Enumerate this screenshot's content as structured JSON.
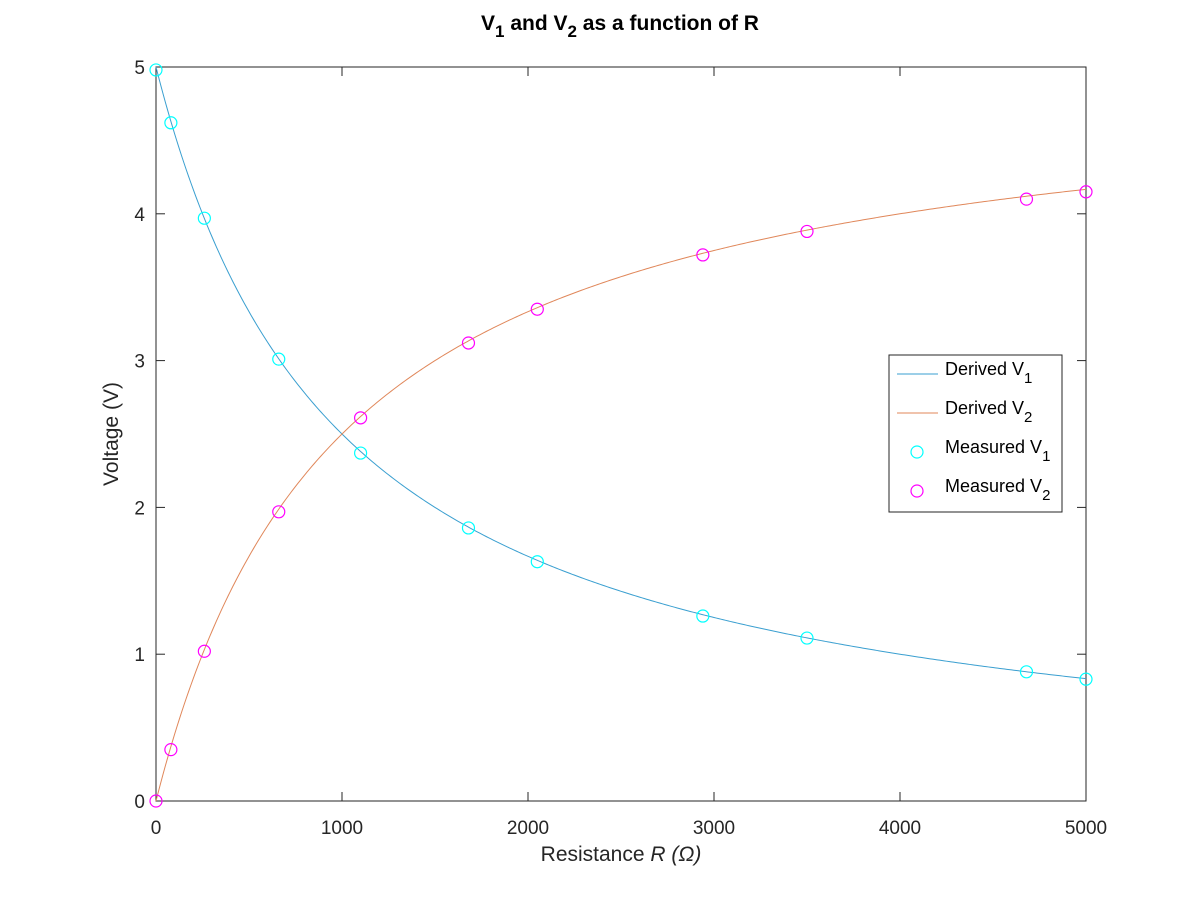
{
  "chart_data": {
    "type": "line",
    "title": {
      "prefix": "V",
      "sub1": "1",
      "mid": " and V",
      "sub2": "2",
      "suffix": " as a function of R"
    },
    "xlabel": {
      "main": "Resistance ",
      "italic": "R (Ω)"
    },
    "ylabel": "Voltage (V)",
    "xlim": [
      0,
      5000
    ],
    "ylim": [
      0,
      5
    ],
    "xticks": [
      0,
      1000,
      2000,
      3000,
      4000,
      5000
    ],
    "yticks": [
      0,
      1,
      2,
      3,
      4,
      5
    ],
    "grid": false,
    "legend_position": "right",
    "derived_model": {
      "source_voltage": 5,
      "series_resistance": 1000
    },
    "series": [
      {
        "key": "derived_v1",
        "name": "Derived V",
        "sub": "1",
        "kind": "line",
        "color": "#3a9fd0",
        "formula": "V1 = 5*1000/(1000+R)"
      },
      {
        "key": "derived_v2",
        "name": "Derived V",
        "sub": "2",
        "kind": "line",
        "color": "#e0875a",
        "formula": "V2 = 5*R/(1000+R)"
      },
      {
        "key": "measured_v1",
        "name": "Measured V",
        "sub": "1",
        "kind": "scatter",
        "color": "#00ffff",
        "points": [
          [
            0,
            4.98
          ],
          [
            80,
            4.62
          ],
          [
            260,
            3.97
          ],
          [
            660,
            3.01
          ],
          [
            1100,
            2.37
          ],
          [
            1680,
            1.86
          ],
          [
            2050,
            1.63
          ],
          [
            2940,
            1.26
          ],
          [
            3500,
            1.11
          ],
          [
            4680,
            0.88
          ],
          [
            5000,
            0.83
          ]
        ]
      },
      {
        "key": "measured_v2",
        "name": "Measured V",
        "sub": "2",
        "kind": "scatter",
        "color": "#ff00ff",
        "points": [
          [
            0,
            0.0
          ],
          [
            80,
            0.35
          ],
          [
            260,
            1.02
          ],
          [
            660,
            1.97
          ],
          [
            1100,
            2.61
          ],
          [
            1680,
            3.12
          ],
          [
            2050,
            3.35
          ],
          [
            2940,
            3.72
          ],
          [
            3500,
            3.88
          ],
          [
            4680,
            4.1
          ],
          [
            5000,
            4.15
          ]
        ]
      }
    ]
  }
}
